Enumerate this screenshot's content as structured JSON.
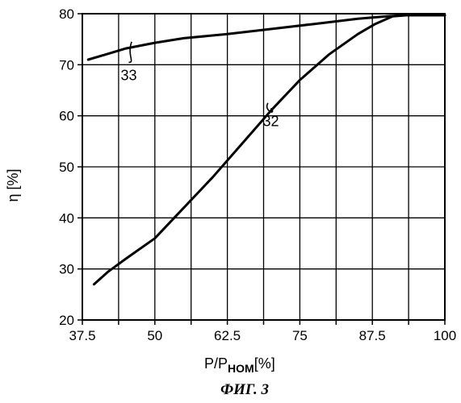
{
  "figure_label": "ФИГ. 3",
  "chart_data": {
    "type": "line",
    "xlabel_main": "P/P",
    "xlabel_sub": "HOM",
    "xlabel_unit": "[%]",
    "ylabel": "η [%]",
    "xlim": [
      37.5,
      100
    ],
    "ylim": [
      20,
      80
    ],
    "x_ticks": [
      37.5,
      50,
      62.5,
      75,
      87.5,
      100
    ],
    "x_tick_labels": [
      "37.5",
      "50",
      "62.5",
      "75",
      "87.5",
      "100"
    ],
    "x_minor_gridlines": [
      43.75,
      56.25,
      68.75,
      81.25,
      93.75
    ],
    "y_ticks": [
      20,
      30,
      40,
      50,
      60,
      70,
      80
    ],
    "y_tick_labels": [
      "20",
      "30",
      "40",
      "50",
      "60",
      "70",
      "80"
    ],
    "grid": true,
    "series": [
      {
        "name": "33",
        "x": [
          38.5,
          41.5,
          45,
          50,
          55,
          62.5,
          70,
          77.5,
          85,
          90,
          93,
          96,
          100
        ],
        "y": [
          71,
          72,
          73.2,
          74.3,
          75.2,
          76,
          77,
          78,
          79,
          79.5,
          79.7,
          79.7,
          79.7
        ],
        "callout": {
          "text": "33",
          "anchor": [
            46,
            74.5
          ],
          "label_at": [
            45.5,
            67
          ]
        }
      },
      {
        "name": "32",
        "x": [
          39.5,
          42,
          45,
          50,
          55,
          60,
          65,
          70,
          75,
          80,
          85,
          88,
          91,
          93.5,
          96,
          100
        ],
        "y": [
          27,
          29.5,
          32,
          36,
          42,
          48,
          54.5,
          61,
          67,
          72,
          76,
          78,
          79.5,
          79.7,
          79.7,
          79.7
        ],
        "callout": {
          "text": "32",
          "anchor": [
            69.5,
            62.5
          ],
          "label_at": [
            70,
            58
          ]
        }
      }
    ]
  }
}
